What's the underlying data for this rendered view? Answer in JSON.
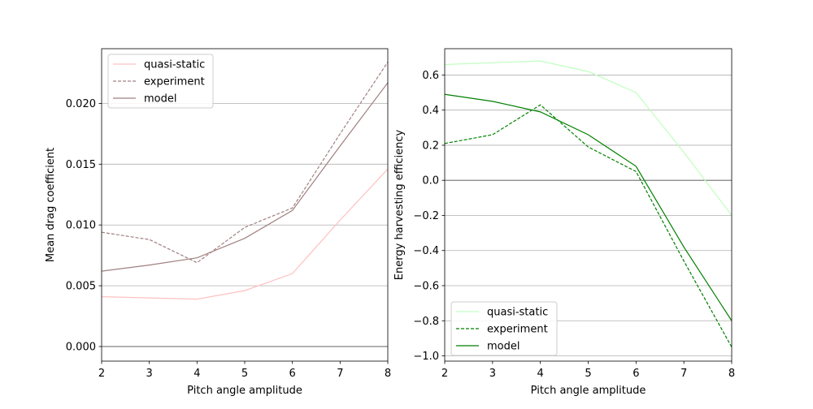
{
  "chart_data": [
    {
      "type": "line",
      "title": "",
      "xlabel": "Pitch angle amplitude",
      "ylabel": "Mean drag coefficient",
      "xlim": [
        2,
        8
      ],
      "ylim": [
        -0.0012,
        0.0245
      ],
      "x_ticks": [
        2,
        3,
        4,
        5,
        6,
        7,
        8
      ],
      "y_ticks": [
        0.0,
        0.005,
        0.01,
        0.015,
        0.02
      ],
      "y_tick_labels": [
        "0.000",
        "0.005",
        "0.010",
        "0.015",
        "0.020"
      ],
      "grid": "horizontal",
      "reference_line": 0,
      "legend_position": "top-left",
      "series": [
        {
          "name": "quasi-static",
          "style": "solid",
          "color": "#ffc0c0",
          "x": [
            2,
            3,
            4,
            5,
            6,
            7,
            8
          ],
          "y": [
            0.0041,
            0.004,
            0.0039,
            0.0046,
            0.006,
            0.0104,
            0.0146
          ]
        },
        {
          "name": "experiment",
          "style": "dashed",
          "color": "#a08080",
          "x": [
            2,
            3,
            4,
            5,
            6,
            7,
            8
          ],
          "y": [
            0.0094,
            0.0088,
            0.0069,
            0.0098,
            0.0114,
            0.0175,
            0.0234
          ]
        },
        {
          "name": "model",
          "style": "solid",
          "color": "#a08080",
          "x": [
            2,
            3,
            4,
            5,
            6,
            7,
            8
          ],
          "y": [
            0.0062,
            0.0067,
            0.0073,
            0.0089,
            0.0112,
            0.0165,
            0.0217
          ]
        }
      ]
    },
    {
      "type": "line",
      "title": "",
      "xlabel": "Pitch angle amplitude",
      "ylabel": "Energy harvesting efficiency",
      "xlim": [
        2,
        8
      ],
      "ylim": [
        -1.03,
        0.75
      ],
      "x_ticks": [
        2,
        3,
        4,
        5,
        6,
        7,
        8
      ],
      "y_ticks": [
        -1.0,
        -0.8,
        -0.6,
        -0.4,
        -0.2,
        0.0,
        0.2,
        0.4,
        0.6
      ],
      "y_tick_labels": [
        "−1.0",
        "−0.8",
        "−0.6",
        "−0.4",
        "−0.2",
        "0.0",
        "0.2",
        "0.4",
        "0.6"
      ],
      "grid": "horizontal",
      "reference_line": 0,
      "legend_position": "bottom-left",
      "series": [
        {
          "name": "quasi-static",
          "style": "solid",
          "color": "#c0ffc0",
          "x": [
            2,
            3,
            4,
            5,
            6,
            7,
            8
          ],
          "y": [
            0.66,
            0.67,
            0.68,
            0.62,
            0.5,
            0.16,
            -0.2
          ]
        },
        {
          "name": "experiment",
          "style": "dashed",
          "color": "#008000",
          "x": [
            2,
            3,
            4,
            5,
            6,
            7,
            8
          ],
          "y": [
            0.21,
            0.26,
            0.43,
            0.19,
            0.05,
            -0.46,
            -0.95
          ]
        },
        {
          "name": "model",
          "style": "solid",
          "color": "#008000",
          "x": [
            2,
            3,
            4,
            5,
            6,
            7,
            8
          ],
          "y": [
            0.49,
            0.45,
            0.39,
            0.26,
            0.08,
            -0.38,
            -0.8
          ]
        }
      ]
    }
  ]
}
